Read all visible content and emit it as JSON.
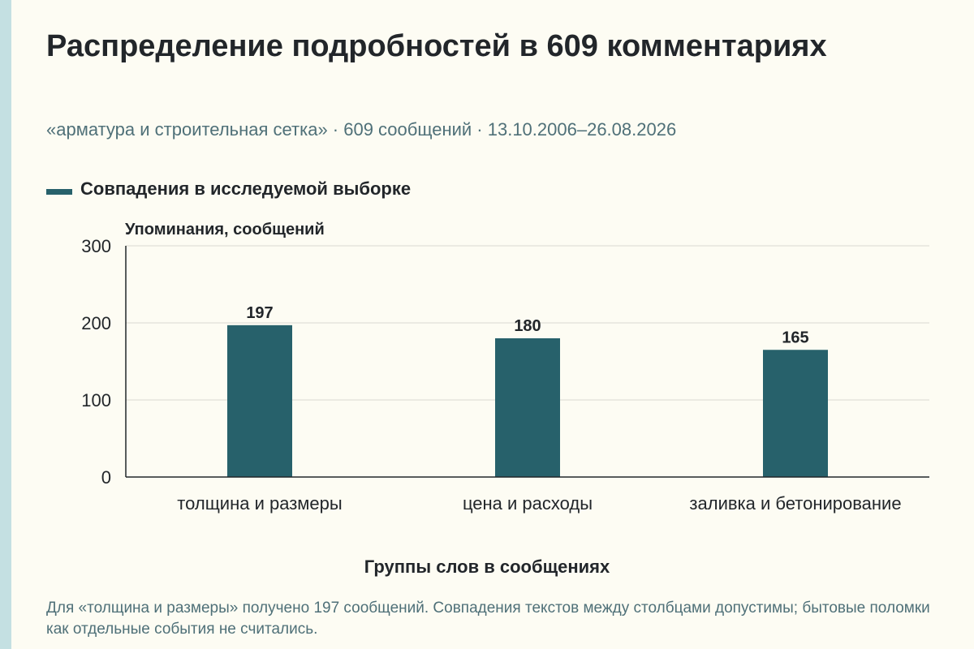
{
  "header": {
    "title": "Распределение подробностей в 609 комментариях",
    "subtitle": "«арматура и строительная сетка» · 609 сообщений · 13.10.2006–26.08.2026"
  },
  "colors": {
    "bar": "#27616b",
    "accent_strip": "#c4e0e2",
    "background": "#fdfcf3",
    "grid": "#d9d9d0",
    "axis": "#22262a"
  },
  "chart_data": {
    "type": "bar",
    "title": "Распределение подробностей в 609 комментариях",
    "subtitle": "«арматура и строительная сетка» · 609 сообщений · 13.10.2006–26.08.2026",
    "xlabel": "Группы слов в сообщениях",
    "ylabel": "Упоминания, сообщений",
    "categories": [
      "толщина и размеры",
      "цена и расходы",
      "заливка и бетонирование"
    ],
    "series": [
      {
        "name": "Совпадения в исследуемой выборке",
        "values": [
          197,
          180,
          165
        ]
      }
    ],
    "ylim": [
      0,
      300
    ],
    "yticks": [
      0,
      100,
      200,
      300
    ],
    "grid": true,
    "legend_position": "top-left",
    "data_labels": [
      "197",
      "180",
      "165"
    ]
  },
  "footnote": "Для «толщина и размеры» получено 197 сообщений. Совпадения текстов между столбцами допустимы; бытовые поломки как отдельные события не считались."
}
